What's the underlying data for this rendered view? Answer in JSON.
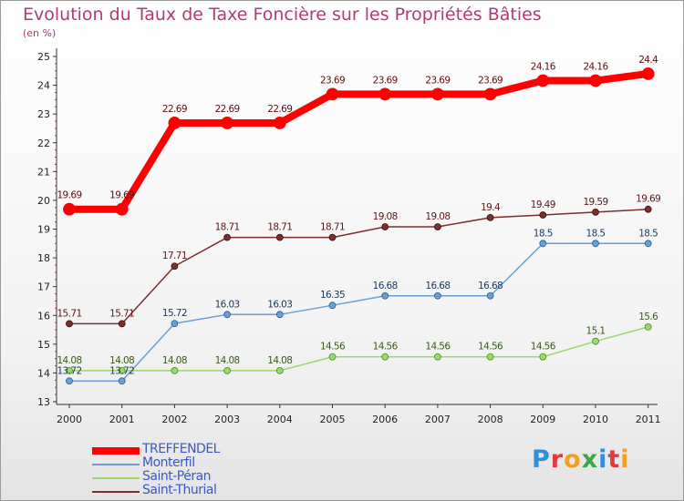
{
  "title": "Evolution du Taux de Taxe Foncière sur les Propriétés Bâties",
  "unit_label": "(en %)",
  "logo": {
    "text": "Proxiti",
    "colors": [
      "#2f8fd8",
      "#e23a3a",
      "#f0a020",
      "#3aa84a",
      "#2f8fd8",
      "#e23a3a",
      "#f0a020"
    ]
  },
  "chart_data": {
    "type": "line",
    "title": "Evolution du Taux de Taxe Foncière sur les Propriétés Bâties",
    "ylabel": "(en %)",
    "xlabel": "",
    "x": [
      "2000",
      "2001",
      "2002",
      "2003",
      "2004",
      "2005",
      "2006",
      "2007",
      "2008",
      "2009",
      "2010",
      "2011"
    ],
    "ylim": [
      13,
      25
    ],
    "yticks": [
      13,
      14,
      15,
      16,
      17,
      18,
      19,
      20,
      21,
      22,
      23,
      24,
      25
    ],
    "grid": false,
    "legend_position": "bottom-left",
    "series": [
      {
        "name": "TREFFENDEL",
        "color": "#ff0000",
        "values": [
          19.69,
          19.69,
          22.69,
          22.69,
          22.69,
          23.69,
          23.69,
          23.69,
          23.69,
          24.16,
          24.16,
          24.4
        ],
        "labels": [
          "19.69",
          "19.69",
          "22.69",
          "22.69",
          "22.69",
          "23.69",
          "23.69",
          "23.69",
          "23.69",
          "24.16",
          "24.16",
          "24.4"
        ]
      },
      {
        "name": "Monterfil",
        "color": "#6a9fd4",
        "values": [
          13.72,
          13.72,
          15.72,
          16.03,
          16.03,
          16.35,
          16.68,
          16.68,
          16.68,
          18.5,
          18.5,
          18.5
        ],
        "labels": [
          "13.72",
          "13.72",
          "15.72",
          "16.03",
          "16.03",
          "16.35",
          "16.68",
          "16.68",
          "16.68",
          "18.5",
          "18.5",
          "18.5"
        ]
      },
      {
        "name": "Saint-Péran",
        "color": "#9ad96a",
        "values": [
          14.08,
          14.08,
          14.08,
          14.08,
          14.08,
          14.56,
          14.56,
          14.56,
          14.56,
          14.56,
          15.1,
          15.6
        ],
        "labels": [
          "14.08",
          "14.08",
          "14.08",
          "14.08",
          "14.08",
          "14.56",
          "14.56",
          "14.56",
          "14.56",
          "14.56",
          "15.1",
          "15.6"
        ]
      },
      {
        "name": "Saint-Thurial",
        "color": "#7a2e2e",
        "values": [
          15.71,
          15.71,
          17.71,
          18.71,
          18.71,
          18.71,
          19.08,
          19.08,
          19.4,
          19.49,
          19.59,
          19.69
        ],
        "labels": [
          "15.71",
          "15.71",
          "17.71",
          "18.71",
          "18.71",
          "18.71",
          "19.08",
          "19.08",
          "19.4",
          "19.49",
          "19.59",
          "19.69"
        ]
      }
    ]
  }
}
